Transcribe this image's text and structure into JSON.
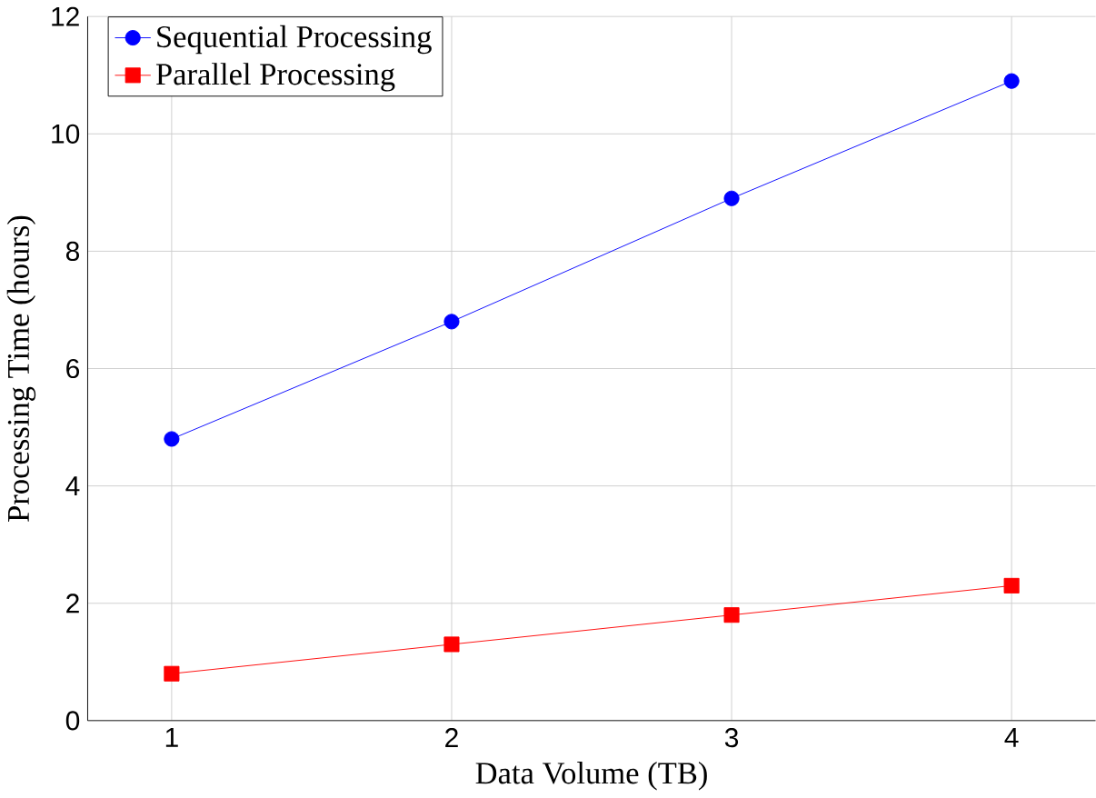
{
  "chart_data": {
    "type": "line",
    "xlabel": "Data Volume (TB)",
    "ylabel": "Processing Time (hours)",
    "x": [
      1,
      2,
      3,
      4
    ],
    "series": [
      {
        "name": "Sequential Processing",
        "color": "#0000ff",
        "values": [
          4.8,
          6.8,
          8.9,
          10.9
        ],
        "marker": "circle"
      },
      {
        "name": "Parallel Processing",
        "color": "#ff0000",
        "values": [
          0.8,
          1.3,
          1.8,
          2.3
        ],
        "marker": "square"
      }
    ],
    "xlim": [
      0.7,
      4.3
    ],
    "ylim": [
      0,
      12
    ],
    "xticks": [
      1,
      2,
      3,
      4
    ],
    "yticks": [
      0,
      2,
      4,
      6,
      8,
      10,
      12
    ],
    "grid": true,
    "legend": "top left",
    "line_style": "solid"
  }
}
